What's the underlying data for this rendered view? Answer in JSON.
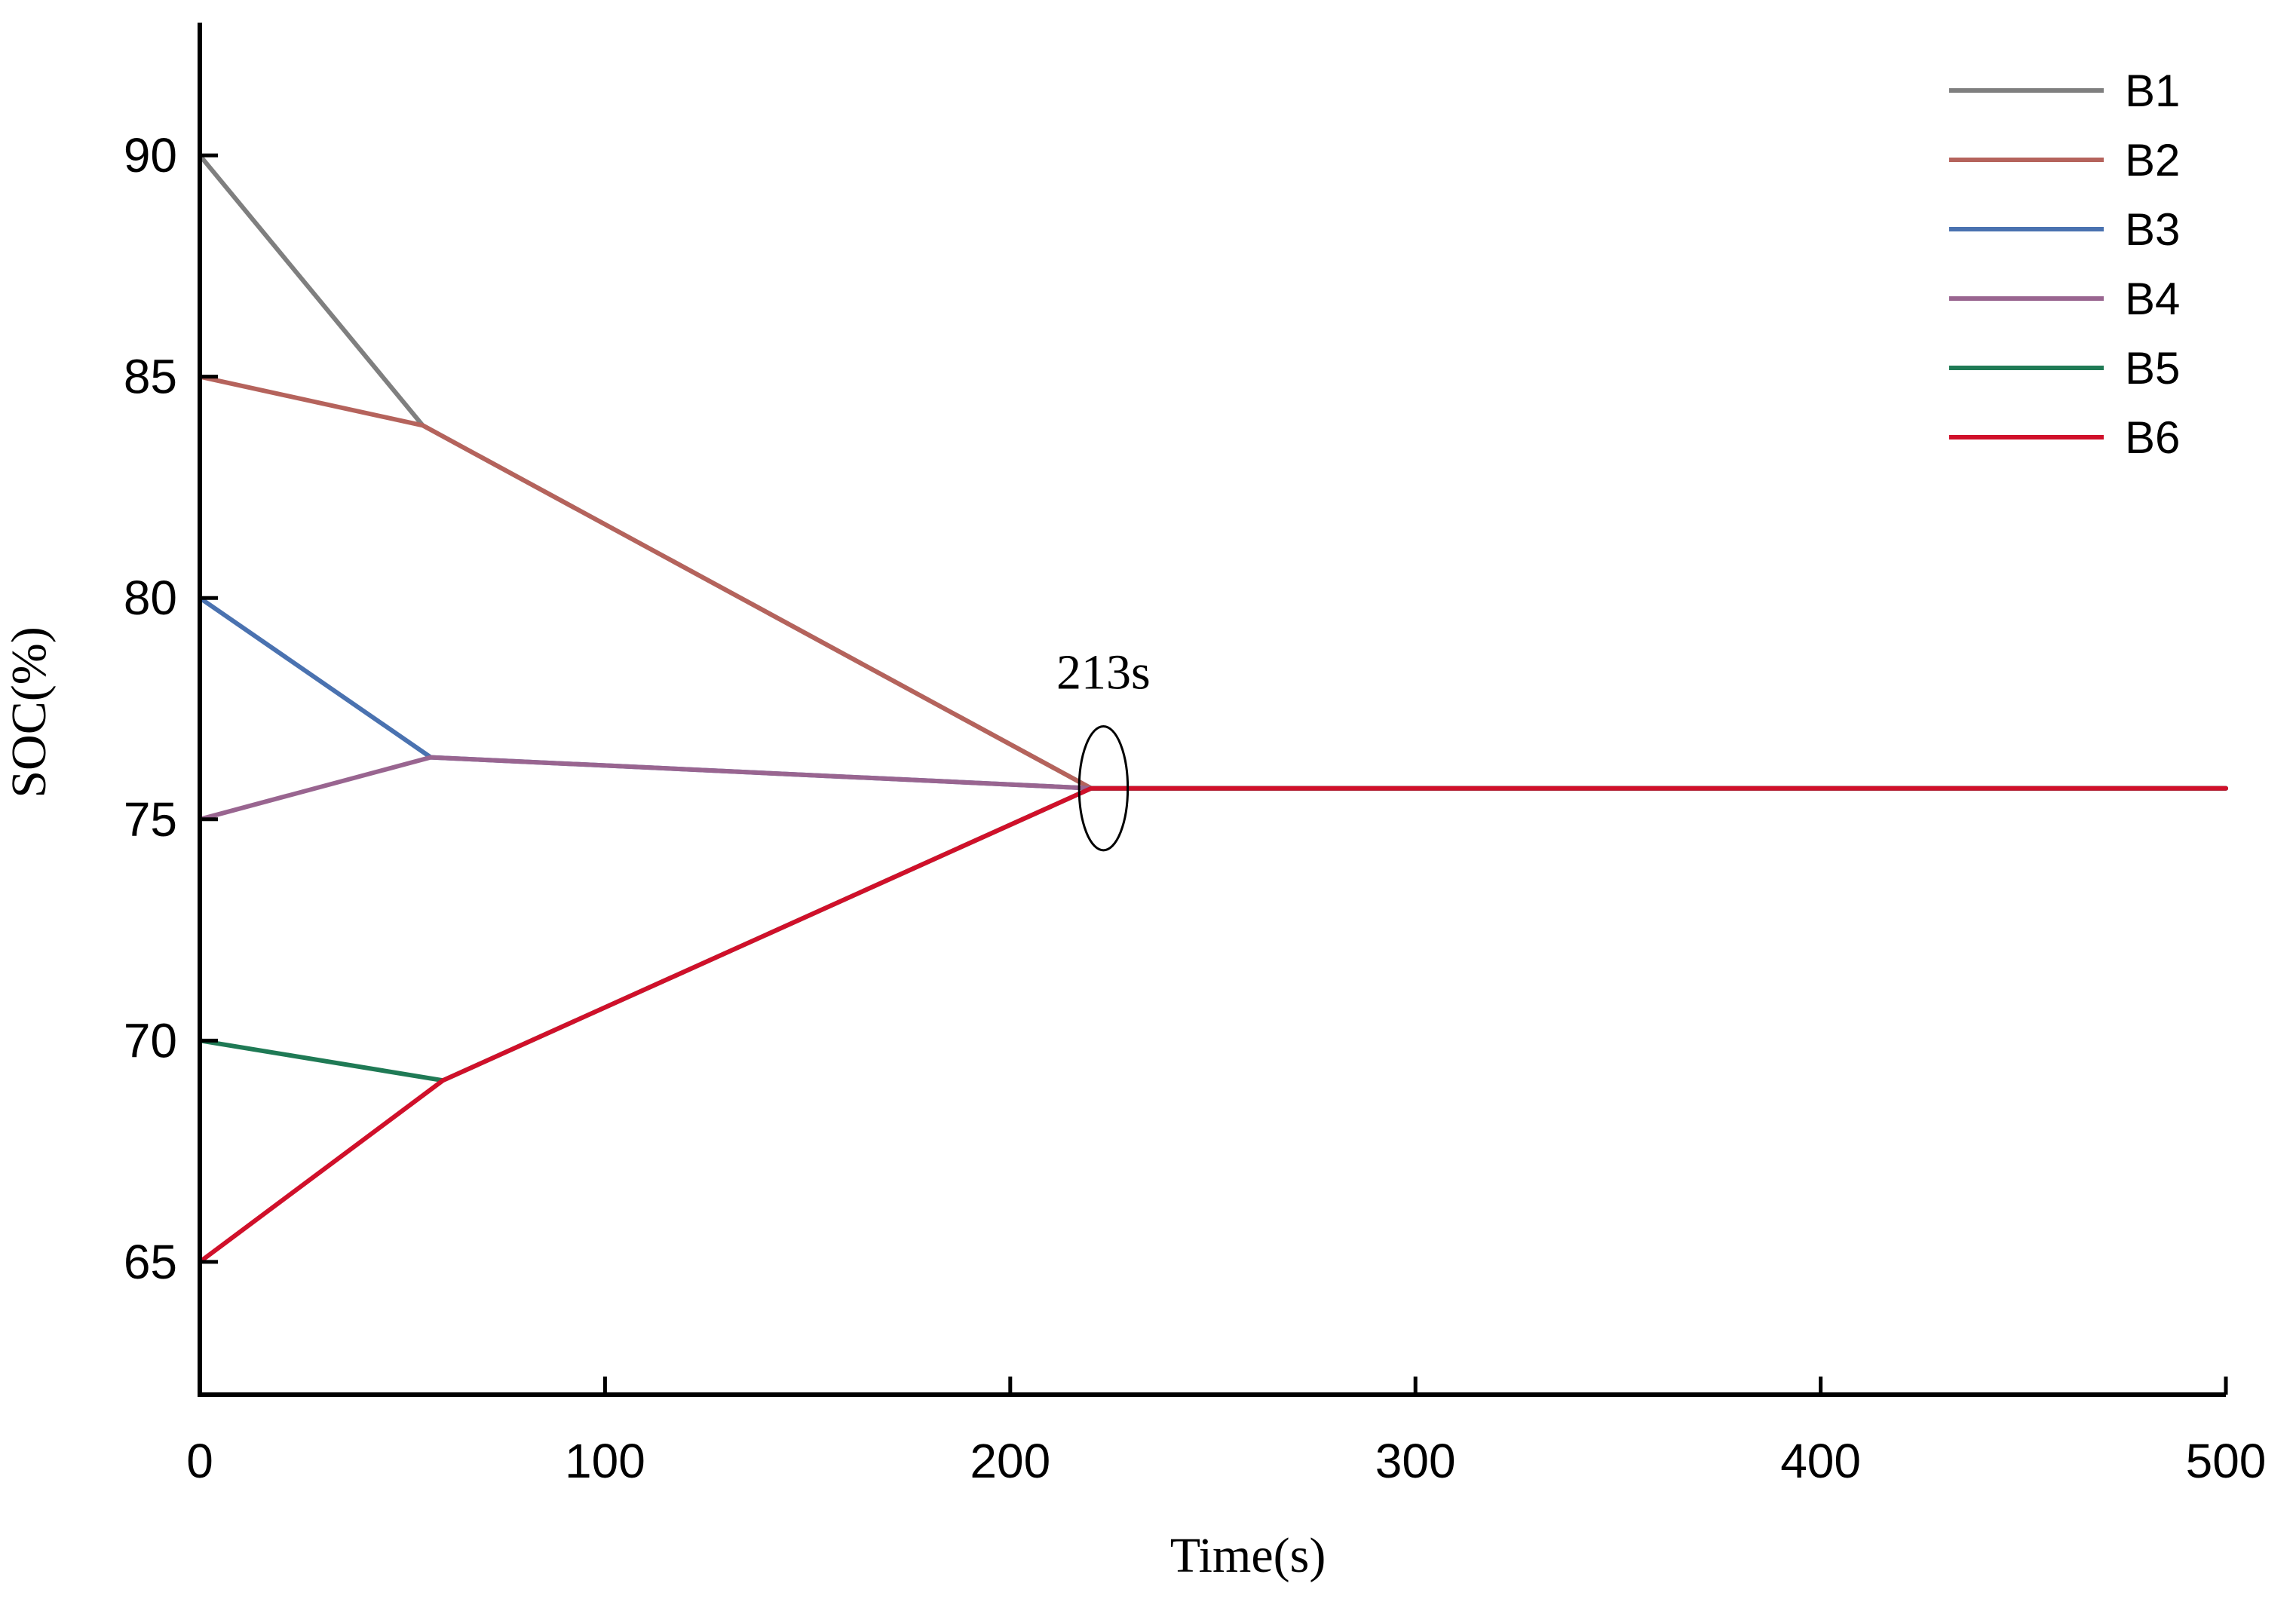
{
  "chart_data": {
    "type": "line",
    "title": "",
    "xlabel": "Time(s)",
    "ylabel": "SOC(%)",
    "xlim": [
      0,
      500
    ],
    "ylim": [
      62,
      93
    ],
    "xticks": [
      0,
      100,
      200,
      300,
      400,
      500
    ],
    "yticks": [
      65,
      70,
      75,
      80,
      85,
      90
    ],
    "grid": false,
    "legend_position": "top-right",
    "series": [
      {
        "name": "B1",
        "color": "#7f7f7f",
        "x": [
          0,
          55,
          220,
          500
        ],
        "y": [
          90,
          83.9,
          75.7,
          75.7
        ]
      },
      {
        "name": "B2",
        "color": "#b5635c",
        "x": [
          0,
          55,
          220,
          500
        ],
        "y": [
          85,
          83.9,
          75.7,
          75.7
        ]
      },
      {
        "name": "B3",
        "color": "#4a72b0",
        "x": [
          0,
          57,
          220,
          500
        ],
        "y": [
          80,
          76.4,
          75.7,
          75.7
        ]
      },
      {
        "name": "B4",
        "color": "#996590",
        "x": [
          0,
          57,
          220,
          500
        ],
        "y": [
          75,
          76.4,
          75.7,
          75.7
        ]
      },
      {
        "name": "B5",
        "color": "#1f7a55",
        "x": [
          0,
          60,
          220,
          500
        ],
        "y": [
          70,
          69.1,
          75.7,
          75.7
        ]
      },
      {
        "name": "B6",
        "color": "#d0102a",
        "x": [
          0,
          60,
          220,
          500
        ],
        "y": [
          65,
          69.1,
          75.7,
          75.7
        ]
      }
    ],
    "annotation": {
      "text": "213s",
      "x": 223,
      "y": 75.7,
      "x_half_width": 6,
      "y_half_height": 1.4
    }
  }
}
